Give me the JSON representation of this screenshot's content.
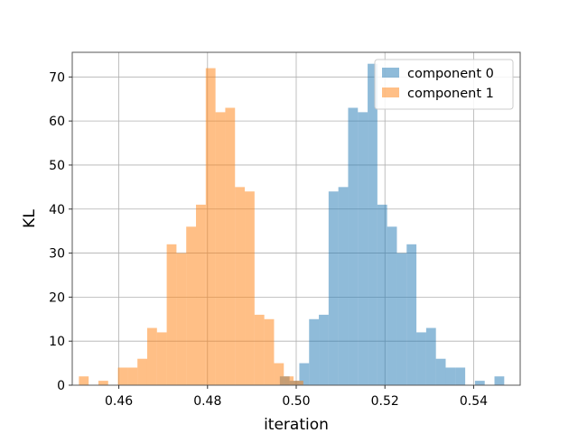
{
  "chart_data": {
    "type": "histogram",
    "title": "",
    "xlabel": "iteration",
    "ylabel": "KL",
    "xlim": [
      0.4495,
      0.5505
    ],
    "ylim": [
      0,
      75.6
    ],
    "x_ticks": [
      0.46,
      0.48,
      0.5,
      0.52,
      0.54
    ],
    "x_tick_labels": [
      "0.46",
      "0.48",
      "0.50",
      "0.52",
      "0.54"
    ],
    "y_ticks": [
      0,
      10,
      20,
      30,
      40,
      50,
      60,
      70
    ],
    "y_tick_labels": [
      "0",
      "10",
      "20",
      "30",
      "40",
      "50",
      "60",
      "70"
    ],
    "grid": true,
    "legend_position": "top-right",
    "series": [
      {
        "name": "component 0",
        "color": "#1f77b4",
        "alpha": 0.5,
        "bins": [
          {
            "x0": 0.4963,
            "x1": 0.4985,
            "count": 2
          },
          {
            "x0": 0.4985,
            "x1": 0.5007,
            "count": 1
          },
          {
            "x0": 0.5007,
            "x1": 0.5029,
            "count": 5
          },
          {
            "x0": 0.5029,
            "x1": 0.5051,
            "count": 15
          },
          {
            "x0": 0.5051,
            "x1": 0.5073,
            "count": 16
          },
          {
            "x0": 0.5073,
            "x1": 0.5095,
            "count": 44
          },
          {
            "x0": 0.5095,
            "x1": 0.5117,
            "count": 45
          },
          {
            "x0": 0.5117,
            "x1": 0.5139,
            "count": 63
          },
          {
            "x0": 0.5139,
            "x1": 0.5161,
            "count": 62
          },
          {
            "x0": 0.5161,
            "x1": 0.5183,
            "count": 73
          },
          {
            "x0": 0.5183,
            "x1": 0.5205,
            "count": 41
          },
          {
            "x0": 0.5205,
            "x1": 0.5227,
            "count": 36
          },
          {
            "x0": 0.5227,
            "x1": 0.5249,
            "count": 30
          },
          {
            "x0": 0.5249,
            "x1": 0.5271,
            "count": 32
          },
          {
            "x0": 0.5271,
            "x1": 0.5293,
            "count": 12
          },
          {
            "x0": 0.5293,
            "x1": 0.5315,
            "count": 13
          },
          {
            "x0": 0.5315,
            "x1": 0.5337,
            "count": 6
          },
          {
            "x0": 0.5337,
            "x1": 0.5359,
            "count": 4
          },
          {
            "x0": 0.5359,
            "x1": 0.5381,
            "count": 4
          },
          {
            "x0": 0.5403,
            "x1": 0.5425,
            "count": 1
          },
          {
            "x0": 0.5447,
            "x1": 0.5469,
            "count": 2
          }
        ]
      },
      {
        "name": "component 1",
        "color": "#ff7f0e",
        "alpha": 0.5,
        "bins": [
          {
            "x0": 0.451,
            "x1": 0.4532,
            "count": 2
          },
          {
            "x0": 0.4554,
            "x1": 0.4576,
            "count": 1
          },
          {
            "x0": 0.4598,
            "x1": 0.462,
            "count": 4
          },
          {
            "x0": 0.462,
            "x1": 0.4642,
            "count": 4
          },
          {
            "x0": 0.4642,
            "x1": 0.4664,
            "count": 6
          },
          {
            "x0": 0.4664,
            "x1": 0.4686,
            "count": 13
          },
          {
            "x0": 0.4686,
            "x1": 0.4708,
            "count": 12
          },
          {
            "x0": 0.4708,
            "x1": 0.473,
            "count": 32
          },
          {
            "x0": 0.473,
            "x1": 0.4752,
            "count": 30
          },
          {
            "x0": 0.4752,
            "x1": 0.4774,
            "count": 36
          },
          {
            "x0": 0.4774,
            "x1": 0.4796,
            "count": 41
          },
          {
            "x0": 0.4796,
            "x1": 0.4818,
            "count": 72
          },
          {
            "x0": 0.4818,
            "x1": 0.484,
            "count": 62
          },
          {
            "x0": 0.484,
            "x1": 0.4862,
            "count": 63
          },
          {
            "x0": 0.4862,
            "x1": 0.4884,
            "count": 45
          },
          {
            "x0": 0.4884,
            "x1": 0.4906,
            "count": 44
          },
          {
            "x0": 0.4906,
            "x1": 0.4928,
            "count": 16
          },
          {
            "x0": 0.4928,
            "x1": 0.495,
            "count": 15
          },
          {
            "x0": 0.495,
            "x1": 0.4972,
            "count": 5
          },
          {
            "x0": 0.4972,
            "x1": 0.4994,
            "count": 2
          },
          {
            "x0": 0.4994,
            "x1": 0.5016,
            "count": 1
          }
        ]
      }
    ]
  }
}
